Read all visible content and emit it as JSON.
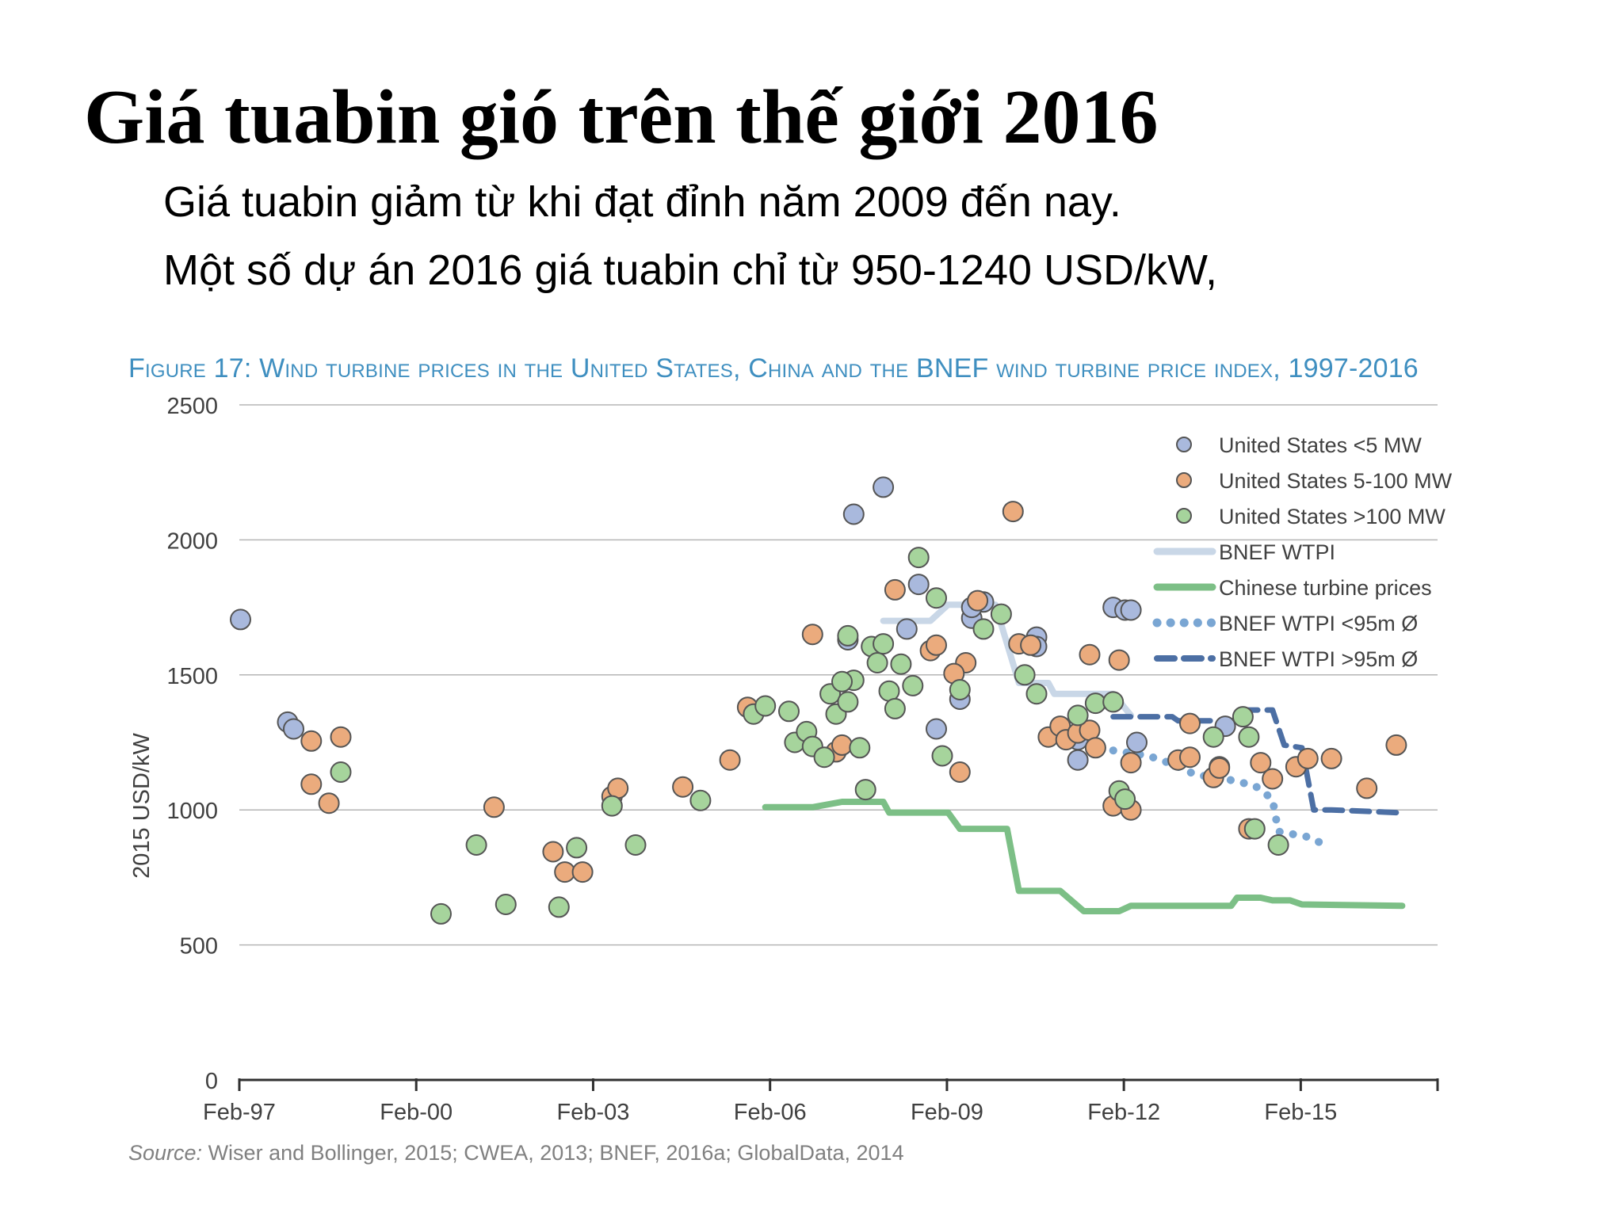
{
  "slide": {
    "title": "Giá tuabin gió trên thế giới 2016",
    "bullets": [
      "Giá tuabin giảm từ khi đạt đỉnh năm 2009 đến nay.",
      "Một số dự án 2016 giá tuabin chỉ từ 950-1240 USD/kW,"
    ]
  },
  "figure": {
    "title": "Figure 17: Wind turbine prices in the United States, China and the BNEF wind turbine price index, 1997-2016",
    "source_lead": "Source:",
    "source_text": "Wiser and Bollinger, 2015; CWEA, 2013; BNEF, 2016a; GlobalData, 2014"
  },
  "chart_data": {
    "type": "scatter",
    "ylabel": "2015 USD/kW",
    "xlabel": "",
    "ylim": [
      0,
      2500
    ],
    "yticks": [
      0,
      500,
      1000,
      1500,
      2000,
      2500
    ],
    "xlim": [
      1997.08,
      2017.4
    ],
    "xticks": [
      {
        "value": 1997.08,
        "label": "Feb-97"
      },
      {
        "value": 2000.08,
        "label": "Feb-00"
      },
      {
        "value": 2003.08,
        "label": "Feb-03"
      },
      {
        "value": 2006.08,
        "label": "Feb-06"
      },
      {
        "value": 2009.08,
        "label": "Feb-09"
      },
      {
        "value": 2012.08,
        "label": "Feb-12"
      },
      {
        "value": 2015.08,
        "label": "Feb-15"
      }
    ],
    "grid": "horizontal",
    "legend_position": "top-right",
    "scatter_series": [
      {
        "name": "United States <5 MW",
        "color": "#a9b9dd",
        "points": [
          [
            1997.1,
            1705
          ],
          [
            1997.9,
            1325
          ],
          [
            1998.0,
            1300
          ],
          [
            2008.6,
            1835
          ],
          [
            2008.9,
            1300
          ],
          [
            2009.3,
            1410
          ],
          [
            2007.5,
            2095
          ],
          [
            2008.0,
            2195
          ],
          [
            2008.4,
            1670
          ],
          [
            2009.5,
            1710
          ],
          [
            2009.7,
            1770
          ],
          [
            2010.6,
            1640
          ],
          [
            2010.6,
            1605
          ],
          [
            2011.9,
            1750
          ],
          [
            2012.1,
            1740
          ],
          [
            2012.2,
            1740
          ],
          [
            2011.3,
            1260
          ],
          [
            2011.3,
            1185
          ],
          [
            2012.3,
            1250
          ],
          [
            2013.8,
            1310
          ],
          [
            2007.4,
            1630
          ],
          [
            2009.5,
            1750
          ],
          [
            2013.7,
            1160
          ]
        ]
      },
      {
        "name": "United States 5-100 MW",
        "color": "#ebab7d",
        "points": [
          [
            1998.3,
            1255
          ],
          [
            1998.3,
            1095
          ],
          [
            1998.6,
            1025
          ],
          [
            1998.8,
            1270
          ],
          [
            2001.4,
            1010
          ],
          [
            2002.4,
            845
          ],
          [
            2002.6,
            770
          ],
          [
            2002.9,
            770
          ],
          [
            2003.4,
            1050
          ],
          [
            2003.5,
            1080
          ],
          [
            2004.6,
            1085
          ],
          [
            2005.4,
            1185
          ],
          [
            2005.7,
            1380
          ],
          [
            2006.8,
            1650
          ],
          [
            2007.2,
            1215
          ],
          [
            2007.3,
            1240
          ],
          [
            2008.2,
            1815
          ],
          [
            2008.8,
            1590
          ],
          [
            2008.9,
            1610
          ],
          [
            2009.3,
            1140
          ],
          [
            2009.4,
            1545
          ],
          [
            2009.2,
            1505
          ],
          [
            2009.6,
            1775
          ],
          [
            2010.2,
            2105
          ],
          [
            2010.3,
            1615
          ],
          [
            2010.5,
            1610
          ],
          [
            2010.8,
            1270
          ],
          [
            2011.0,
            1310
          ],
          [
            2011.1,
            1260
          ],
          [
            2011.3,
            1285
          ],
          [
            2011.5,
            1295
          ],
          [
            2011.6,
            1230
          ],
          [
            2011.5,
            1575
          ],
          [
            2011.9,
            1015
          ],
          [
            2012.0,
            1555
          ],
          [
            2012.2,
            1175
          ],
          [
            2012.2,
            1000
          ],
          [
            2013.0,
            1185
          ],
          [
            2013.2,
            1195
          ],
          [
            2013.2,
            1320
          ],
          [
            2013.6,
            1120
          ],
          [
            2013.7,
            1155
          ],
          [
            2014.2,
            930
          ],
          [
            2014.4,
            1175
          ],
          [
            2014.6,
            1115
          ],
          [
            2015.0,
            1160
          ],
          [
            2015.2,
            1190
          ],
          [
            2015.6,
            1190
          ],
          [
            2016.2,
            1080
          ],
          [
            2016.7,
            1240
          ]
        ]
      },
      {
        "name": "United States >100 MW",
        "color": "#a6d49c",
        "points": [
          [
            1998.8,
            1140
          ],
          [
            2000.5,
            615
          ],
          [
            2001.1,
            870
          ],
          [
            2001.6,
            650
          ],
          [
            2002.5,
            640
          ],
          [
            2002.8,
            860
          ],
          [
            2003.4,
            1015
          ],
          [
            2003.8,
            870
          ],
          [
            2004.9,
            1035
          ],
          [
            2005.8,
            1355
          ],
          [
            2006.0,
            1385
          ],
          [
            2006.4,
            1365
          ],
          [
            2006.5,
            1250
          ],
          [
            2006.7,
            1290
          ],
          [
            2006.8,
            1235
          ],
          [
            2007.0,
            1195
          ],
          [
            2007.1,
            1430
          ],
          [
            2007.2,
            1355
          ],
          [
            2007.4,
            1400
          ],
          [
            2007.5,
            1480
          ],
          [
            2007.3,
            1475
          ],
          [
            2007.4,
            1645
          ],
          [
            2007.6,
            1230
          ],
          [
            2007.7,
            1075
          ],
          [
            2007.8,
            1605
          ],
          [
            2007.9,
            1545
          ],
          [
            2008.0,
            1615
          ],
          [
            2008.1,
            1440
          ],
          [
            2008.2,
            1375
          ],
          [
            2008.3,
            1540
          ],
          [
            2008.5,
            1460
          ],
          [
            2008.6,
            1935
          ],
          [
            2008.9,
            1785
          ],
          [
            2009.0,
            1200
          ],
          [
            2009.3,
            1445
          ],
          [
            2009.7,
            1670
          ],
          [
            2010.0,
            1725
          ],
          [
            2010.4,
            1500
          ],
          [
            2010.6,
            1430
          ],
          [
            2011.3,
            1350
          ],
          [
            2011.6,
            1395
          ],
          [
            2011.9,
            1400
          ],
          [
            2012.0,
            1070
          ],
          [
            2012.1,
            1040
          ],
          [
            2013.6,
            1270
          ],
          [
            2014.1,
            1345
          ],
          [
            2014.2,
            1270
          ],
          [
            2014.3,
            930
          ],
          [
            2014.7,
            870
          ]
        ]
      }
    ],
    "line_series": [
      {
        "name": "BNEF WTPI",
        "color": "#c9d7e7",
        "style": "solid",
        "points": [
          [
            2008.0,
            1700
          ],
          [
            2008.8,
            1700
          ],
          [
            2009.1,
            1760
          ],
          [
            2009.9,
            1760
          ],
          [
            2010.3,
            1470
          ],
          [
            2010.8,
            1470
          ],
          [
            2010.9,
            1430
          ],
          [
            2011.9,
            1430
          ],
          [
            2012.2,
            1350
          ]
        ]
      },
      {
        "name": "Chinese turbine prices",
        "color": "#7cbf86",
        "style": "solid",
        "points": [
          [
            2006.0,
            1010
          ],
          [
            2006.8,
            1010
          ],
          [
            2007.3,
            1030
          ],
          [
            2008.0,
            1030
          ],
          [
            2008.1,
            990
          ],
          [
            2009.1,
            990
          ],
          [
            2009.3,
            930
          ],
          [
            2010.1,
            930
          ],
          [
            2010.3,
            700
          ],
          [
            2011.0,
            700
          ],
          [
            2011.4,
            625
          ],
          [
            2012.0,
            625
          ],
          [
            2012.2,
            645
          ],
          [
            2013.9,
            645
          ],
          [
            2014.0,
            675
          ],
          [
            2014.4,
            675
          ],
          [
            2014.6,
            665
          ],
          [
            2014.9,
            665
          ],
          [
            2015.1,
            650
          ],
          [
            2016.8,
            645
          ]
        ]
      },
      {
        "name": "BNEF WTPI <95m Ø",
        "color": "#7aa6d3",
        "style": "dotted",
        "points": [
          [
            2011.9,
            1220
          ],
          [
            2012.5,
            1200
          ],
          [
            2012.9,
            1170
          ],
          [
            2013.3,
            1130
          ],
          [
            2013.8,
            1115
          ],
          [
            2014.3,
            1090
          ],
          [
            2014.6,
            1040
          ],
          [
            2014.7,
            920
          ],
          [
            2015.2,
            900
          ],
          [
            2015.5,
            870
          ]
        ]
      },
      {
        "name": "BNEF WTPI >95m Ø",
        "color": "#4c6fa4",
        "style": "dashed",
        "points": [
          [
            2011.9,
            1345
          ],
          [
            2012.9,
            1345
          ],
          [
            2013.0,
            1330
          ],
          [
            2014.0,
            1330
          ],
          [
            2014.1,
            1370
          ],
          [
            2014.6,
            1370
          ],
          [
            2014.8,
            1240
          ],
          [
            2015.1,
            1230
          ],
          [
            2015.3,
            1000
          ],
          [
            2015.6,
            1000
          ],
          [
            2016.7,
            990
          ]
        ]
      }
    ]
  }
}
